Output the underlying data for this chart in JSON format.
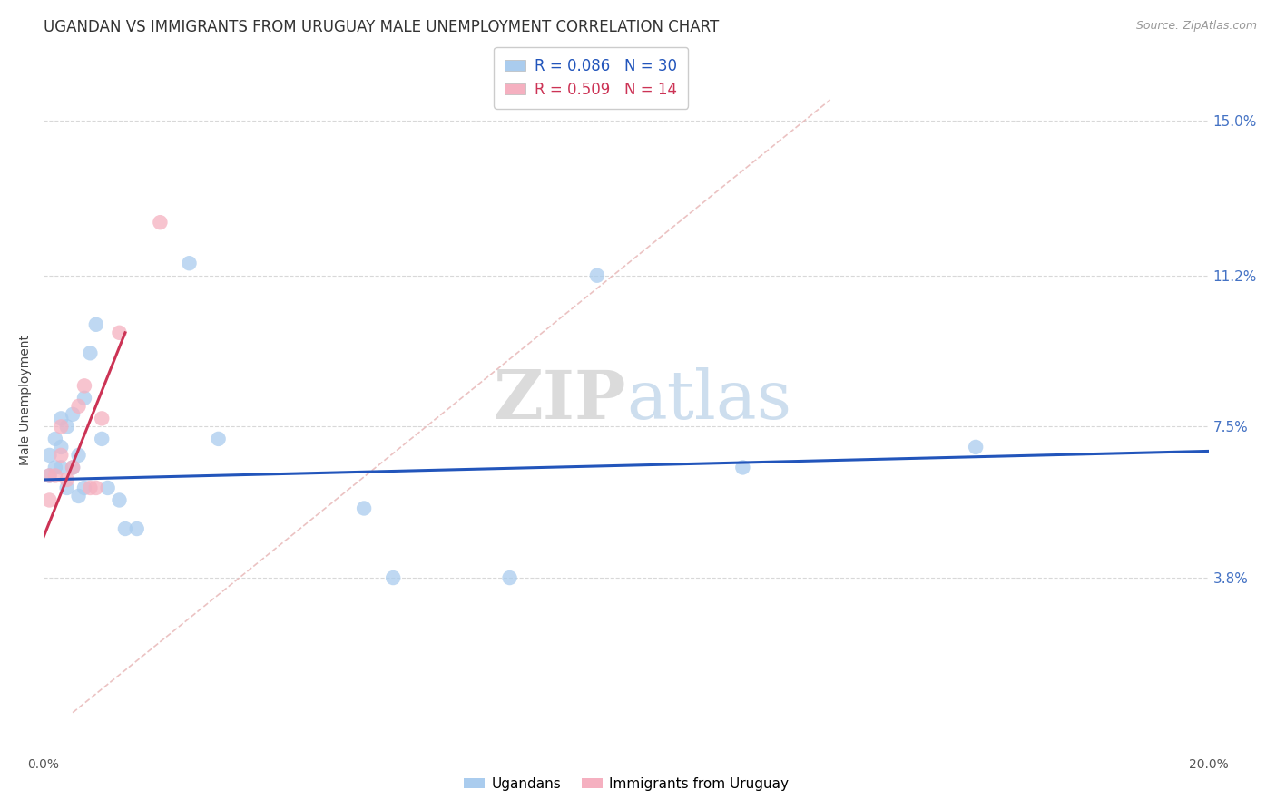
{
  "title": "UGANDAN VS IMMIGRANTS FROM URUGUAY MALE UNEMPLOYMENT CORRELATION CHART",
  "source": "Source: ZipAtlas.com",
  "ylabel": "Male Unemployment",
  "xlim": [
    0.0,
    0.2
  ],
  "ylim": [
    -0.005,
    0.168
  ],
  "xtick_vals": [
    0.0,
    0.04,
    0.08,
    0.12,
    0.16,
    0.2
  ],
  "xtick_labels": [
    "0.0%",
    "",
    "",
    "",
    "",
    "20.0%"
  ],
  "ytick_vals": [
    0.038,
    0.075,
    0.112,
    0.15
  ],
  "ytick_labels": [
    "3.8%",
    "7.5%",
    "11.2%",
    "15.0%"
  ],
  "ugandan_x": [
    0.001,
    0.001,
    0.002,
    0.002,
    0.003,
    0.003,
    0.003,
    0.004,
    0.004,
    0.005,
    0.005,
    0.006,
    0.006,
    0.007,
    0.007,
    0.008,
    0.009,
    0.01,
    0.011,
    0.013,
    0.014,
    0.016,
    0.025,
    0.03,
    0.06,
    0.08,
    0.12,
    0.16,
    0.055,
    0.095
  ],
  "ugandan_y": [
    0.063,
    0.068,
    0.065,
    0.072,
    0.07,
    0.065,
    0.077,
    0.075,
    0.06,
    0.078,
    0.065,
    0.068,
    0.058,
    0.082,
    0.06,
    0.093,
    0.1,
    0.072,
    0.06,
    0.057,
    0.05,
    0.05,
    0.115,
    0.072,
    0.038,
    0.038,
    0.065,
    0.07,
    0.055,
    0.112
  ],
  "uruguay_x": [
    0.001,
    0.001,
    0.002,
    0.003,
    0.003,
    0.004,
    0.005,
    0.006,
    0.007,
    0.008,
    0.009,
    0.01,
    0.013,
    0.02
  ],
  "uruguay_y": [
    0.057,
    0.063,
    0.063,
    0.068,
    0.075,
    0.062,
    0.065,
    0.08,
    0.085,
    0.06,
    0.06,
    0.077,
    0.098,
    0.125
  ],
  "ugandan_color": "#aaccee",
  "uruguay_color": "#f5b0c0",
  "ugandan_line_color": "#2255bb",
  "uruguay_line_color": "#cc3355",
  "diag_color": "#e8b8b8",
  "legend_R1": "R = 0.086",
  "legend_N1": "N = 30",
  "legend_R2": "R = 0.509",
  "legend_N2": "N = 14",
  "legend_label1": "Ugandans",
  "legend_label2": "Immigrants from Uruguay",
  "title_fontsize": 12,
  "label_fontsize": 10,
  "tick_fontsize": 10,
  "source_fontsize": 9
}
